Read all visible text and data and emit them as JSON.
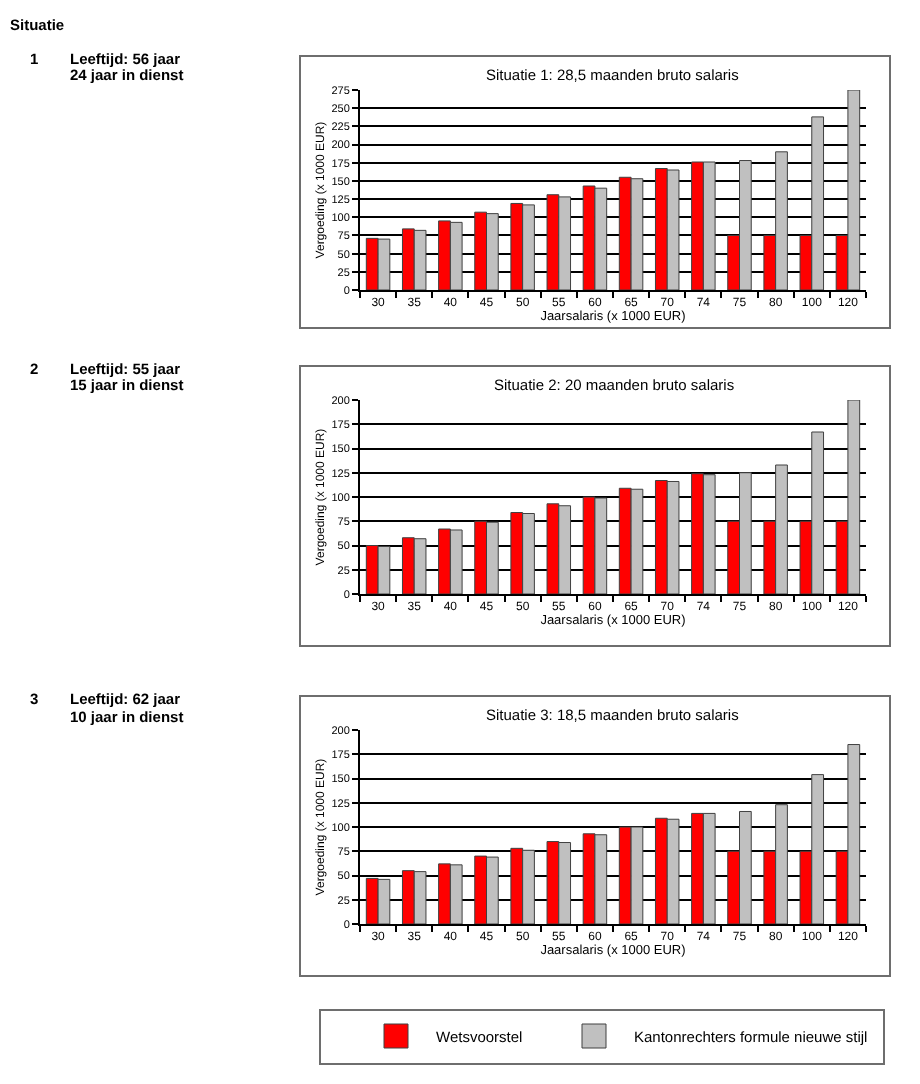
{
  "chart_data": [
    {
      "type": "bar",
      "title": "Situatie 1: 28,5 maanden bruto salaris",
      "xlabel": "Jaarsalaris (x 1000 EUR)",
      "ylabel": "Vergoeding (x 1000 EUR)",
      "categories": [
        "30",
        "35",
        "40",
        "45",
        "50",
        "55",
        "60",
        "65",
        "70",
        "74",
        "75",
        "80",
        "100",
        "120"
      ],
      "series": [
        {
          "name": "Wetsvoorstel",
          "color": "#ff0000",
          "values": [
            71,
            84,
            95,
            107,
            119,
            131,
            143,
            155,
            167,
            176,
            75,
            75,
            75,
            75
          ]
        },
        {
          "name": "Kantonrechters formule nieuwe stijl",
          "color": "#c0c0c0",
          "values": [
            70,
            82,
            93,
            105,
            117,
            128,
            140,
            153,
            165,
            176,
            178,
            190,
            238,
            275
          ]
        }
      ],
      "ylim": [
        0,
        275
      ],
      "yticks": [
        0,
        25,
        50,
        75,
        100,
        125,
        150,
        175,
        200,
        225,
        250,
        275
      ],
      "grid": "y",
      "legend": "bottom",
      "annotations": [
        "Situatie",
        "1",
        "Leeftijd: 56 jaar",
        "24 jaar in dienst"
      ]
    },
    {
      "type": "bar",
      "title": "Situatie 2: 20 maanden bruto salaris",
      "xlabel": "Jaarsalaris (x 1000 EUR)",
      "ylabel": "Vergoeding (x 1000 EUR)",
      "categories": [
        "30",
        "35",
        "40",
        "45",
        "50",
        "55",
        "60",
        "65",
        "70",
        "74",
        "75",
        "80",
        "100",
        "120"
      ],
      "series": [
        {
          "name": "Wetsvoorstel",
          "color": "#ff0000",
          "values": [
            50,
            58,
            67,
            75,
            84,
            93,
            100,
            109,
            117,
            124,
            75,
            75,
            75,
            75
          ]
        },
        {
          "name": "Kantonrechters formule nieuwe stijl",
          "color": "#c0c0c0",
          "values": [
            49,
            57,
            66,
            74,
            83,
            91,
            99,
            108,
            116,
            123,
            125,
            133,
            167,
            200
          ]
        }
      ],
      "ylim": [
        0,
        200
      ],
      "yticks": [
        0,
        25,
        50,
        75,
        100,
        125,
        150,
        175,
        200
      ],
      "grid": "y",
      "annotations": [
        "2",
        "Leeftijd: 55 jaar",
        "15 jaar in dienst"
      ]
    },
    {
      "type": "bar",
      "title": "Situatie 3: 18,5 maanden bruto salaris",
      "xlabel": "Jaarsalaris (x 1000 EUR)",
      "ylabel": "Vergoeding (x 1000 EUR)",
      "categories": [
        "30",
        "35",
        "40",
        "45",
        "50",
        "55",
        "60",
        "65",
        "70",
        "74",
        "75",
        "80",
        "100",
        "120"
      ],
      "series": [
        {
          "name": "Wetsvoorstel",
          "color": "#ff0000",
          "values": [
            47,
            55,
            62,
            70,
            78,
            85,
            93,
            100,
            109,
            114,
            75,
            75,
            75,
            75
          ]
        },
        {
          "name": "Kantonrechters formule nieuwe stijl",
          "color": "#c0c0c0",
          "values": [
            46,
            54,
            61,
            69,
            76,
            84,
            92,
            100,
            108,
            114,
            116,
            123,
            154,
            185
          ]
        }
      ],
      "ylim": [
        0,
        200
      ],
      "yticks": [
        0,
        25,
        50,
        75,
        100,
        125,
        150,
        175,
        200
      ],
      "grid": "y",
      "annotations": [
        "3",
        "Leeftijd: 62 jaar",
        "10 jaar in dienst"
      ]
    }
  ]
}
